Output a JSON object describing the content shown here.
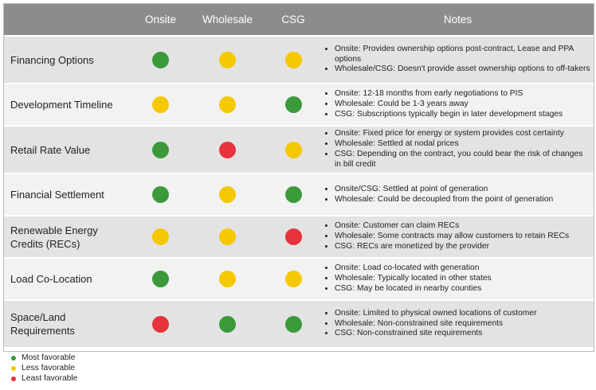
{
  "table": {
    "headers": [
      "",
      "Onsite",
      "Wholesale",
      "CSG",
      "Notes"
    ],
    "colors": {
      "green": "#3a9a3a",
      "yellow": "#f5c800",
      "red": "#e8323c"
    },
    "rows": [
      {
        "label": "Financing Options",
        "onsite": "green",
        "wholesale": "yellow",
        "csg": "yellow",
        "notes": [
          "Onsite: Provides ownership options post-contract, Lease and PPA options",
          "Wholesale/CSG: Doesn't provide asset ownership options to off-takers"
        ]
      },
      {
        "label": "Development  Timeline",
        "onsite": "yellow",
        "wholesale": "yellow",
        "csg": "green",
        "notes": [
          "Onsite: 12-18 months from early negotiations to PIS",
          "Wholesale: Could be 1-3 years away",
          "CSG: Subscriptions typically begin in later development stages"
        ]
      },
      {
        "label": "Retail Rate Value",
        "onsite": "green",
        "wholesale": "red",
        "csg": "yellow",
        "notes": [
          "Onsite: Fixed price for energy or system provides cost certainty",
          "Wholesale: Settled at nodal prices",
          "CSG: Depending on the contract, you could bear the risk of changes in bill credit"
        ]
      },
      {
        "label": "Financial Settlement",
        "onsite": "green",
        "wholesale": "yellow",
        "csg": "green",
        "notes": [
          "Onsite/CSG: Settled at point of generation",
          "Wholesale: Could be decoupled from the point of generation"
        ]
      },
      {
        "label": "Renewable Energy Credits (RECs)",
        "onsite": "yellow",
        "wholesale": "yellow",
        "csg": "red",
        "notes": [
          "Onsite: Customer can claim RECs",
          "Wholesale: Some contracts may allow customers to retain RECs",
          "CSG: RECs are monetized by the provider"
        ]
      },
      {
        "label": "Load  Co-Location",
        "onsite": "green",
        "wholesale": "yellow",
        "csg": "yellow",
        "notes": [
          "Onsite: Load co-located with generation",
          "Wholesale: Typically located in other states",
          "CSG: May be located in nearby counties"
        ]
      },
      {
        "label": "Space/Land Requirements",
        "onsite": "red",
        "wholesale": "green",
        "csg": "green",
        "notes": [
          "Onsite:  Limited to physical owned locations of customer",
          "Wholesale: Non-constrained site requirements",
          "CSG: Non-constrained site requirements"
        ]
      }
    ]
  },
  "legend": [
    {
      "color": "green",
      "label": "Most favorable"
    },
    {
      "color": "yellow",
      "label": "Less favorable"
    },
    {
      "color": "red",
      "label": "Least favorable"
    }
  ]
}
